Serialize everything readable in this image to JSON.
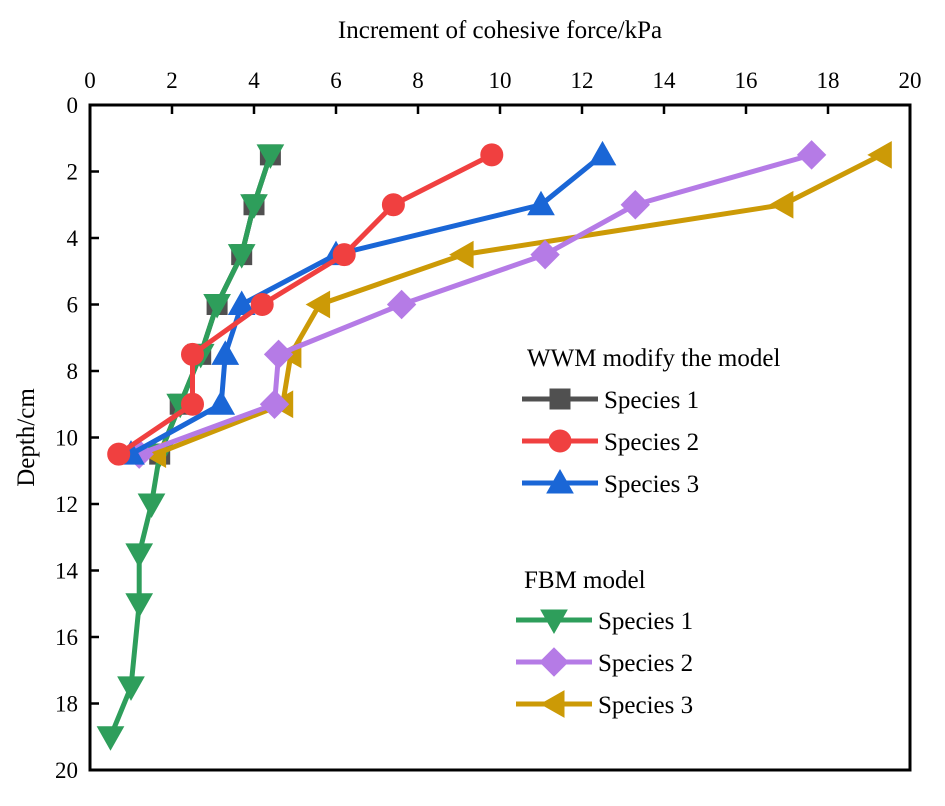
{
  "chart_data": {
    "type": "line",
    "title": "",
    "xlabel": "Increment of cohesive force/kPa",
    "ylabel": "Depth/cm",
    "xlim": [
      0,
      20
    ],
    "ylim": [
      20,
      0
    ],
    "x_ticks": [
      0,
      2,
      4,
      6,
      8,
      10,
      12,
      14,
      16,
      18,
      20
    ],
    "y_ticks": [
      0,
      2,
      4,
      6,
      8,
      10,
      12,
      14,
      16,
      18,
      20
    ],
    "x_axis_position": "top",
    "y_inverted": true,
    "grid": false,
    "legend_groups": [
      {
        "title": "WWM modify the model",
        "series": [
          {
            "name": "Species 1",
            "color": "#505050",
            "marker": "square",
            "depth": [
              1.5,
              3,
              4.5,
              6,
              7.5,
              9,
              10.5
            ],
            "x": [
              4.4,
              4.0,
              3.7,
              3.1,
              2.7,
              2.2,
              1.7
            ]
          },
          {
            "name": "Species 2",
            "color": "#f04040",
            "marker": "circle",
            "depth": [
              1.5,
              3,
              4.5,
              6,
              7.5,
              9,
              10.5
            ],
            "x": [
              9.8,
              7.4,
              6.2,
              4.2,
              2.5,
              2.5,
              0.7
            ]
          },
          {
            "name": "Species 3",
            "color": "#1a66d6",
            "marker": "triangle-up",
            "depth": [
              1.5,
              3,
              4.5,
              6,
              7.5,
              9,
              10.5
            ],
            "x": [
              12.5,
              11.0,
              6.0,
              3.7,
              3.3,
              3.2,
              1.0
            ]
          }
        ]
      },
      {
        "title": "FBM model",
        "series": [
          {
            "name": "Species 1",
            "color": "#2e9e5b",
            "marker": "triangle-down",
            "depth": [
              1.5,
              3,
              4.5,
              6,
              7.5,
              9,
              10.5,
              12,
              13.5,
              15,
              17.5,
              19
            ],
            "x": [
              4.4,
              4.0,
              3.7,
              3.1,
              2.7,
              2.2,
              1.7,
              1.5,
              1.2,
              1.2,
              1.0,
              0.5
            ]
          },
          {
            "name": "Species 2",
            "color": "#b57be6",
            "marker": "diamond",
            "depth": [
              1.5,
              3,
              4.5,
              6,
              7.5,
              9,
              10.5
            ],
            "x": [
              17.6,
              13.3,
              11.1,
              7.6,
              4.6,
              4.5,
              1.2
            ]
          },
          {
            "name": "Species 3",
            "color": "#cc9a06",
            "marker": "triangle-left",
            "depth": [
              1.5,
              3,
              4.5,
              6,
              7.5,
              9,
              10.5
            ],
            "x": [
              19.3,
              16.9,
              9.1,
              5.6,
              4.9,
              4.7,
              1.6
            ]
          }
        ]
      }
    ]
  }
}
